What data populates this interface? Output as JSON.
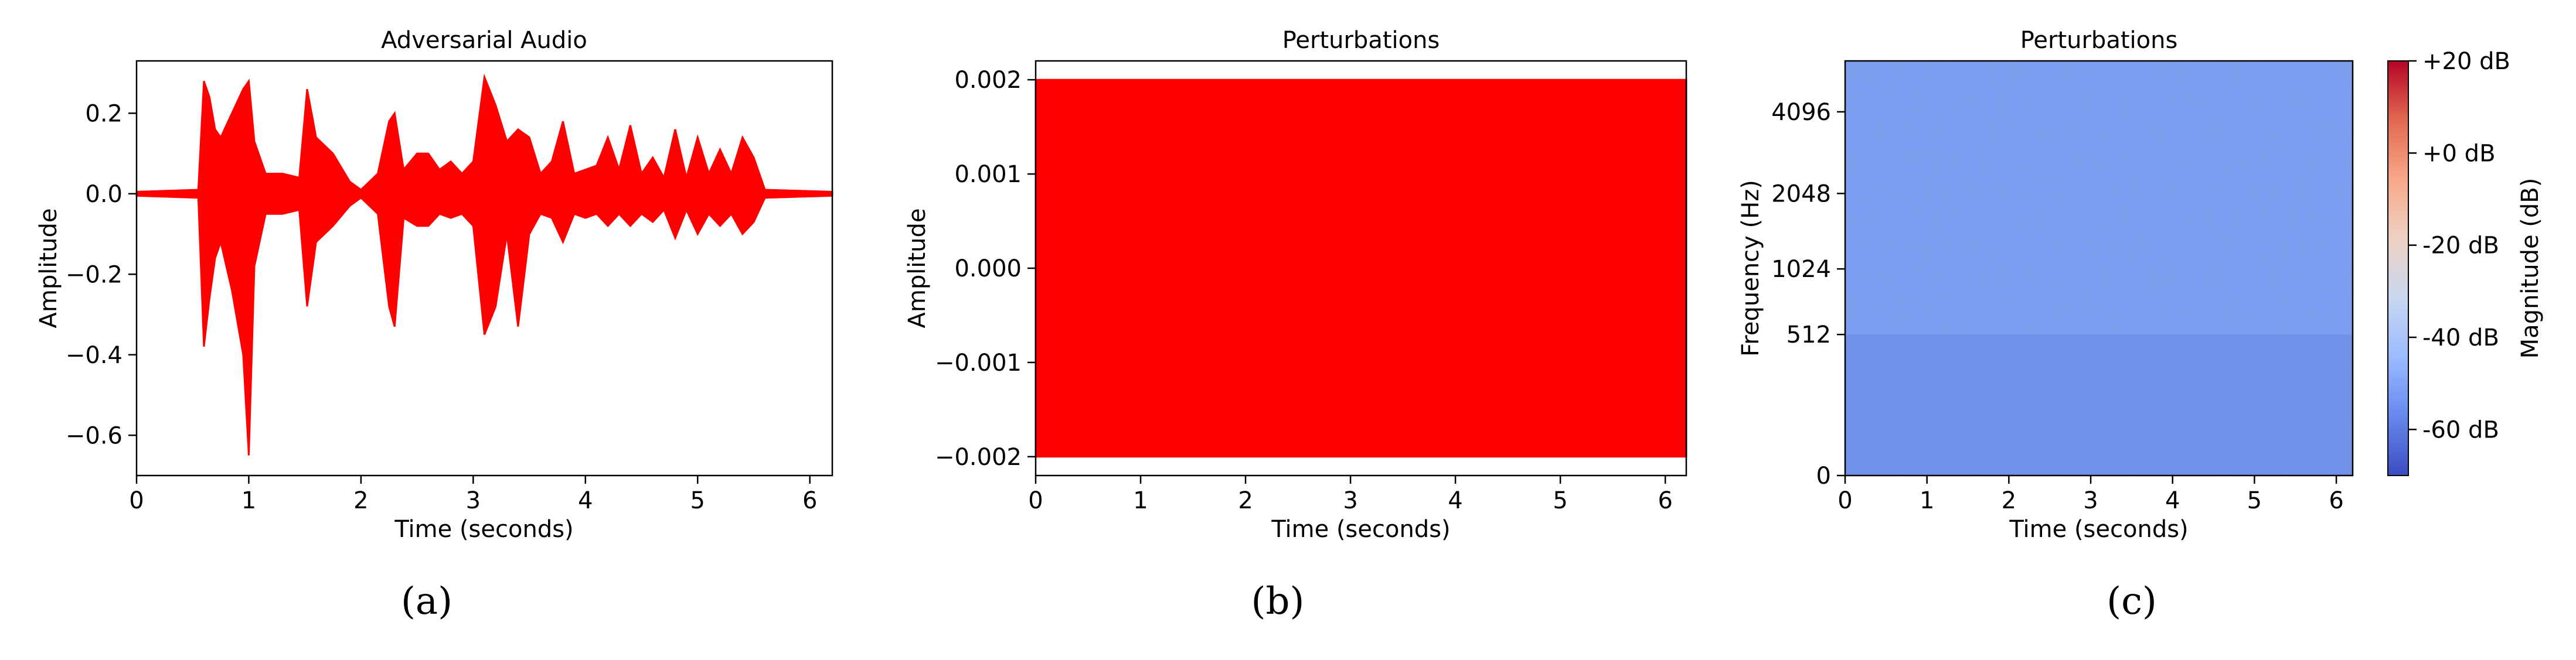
{
  "chart_data": [
    {
      "type": "line",
      "title": "Adversarial Audio",
      "xlabel": "Time (seconds)",
      "ylabel": "Amplitude",
      "xlim": [
        0,
        6.2
      ],
      "ylim": [
        -0.7,
        0.33
      ],
      "xticks": [
        0,
        1,
        2,
        3,
        4,
        5,
        6
      ],
      "xticklabels": [
        "0",
        "1",
        "2",
        "3",
        "4",
        "5",
        "6"
      ],
      "yticks": [
        0.2,
        0.0,
        -0.2,
        -0.4,
        -0.6
      ],
      "yticklabels": [
        "0.2",
        "0.0",
        "−0.2",
        "−0.4",
        "−0.6"
      ],
      "series": [
        {
          "color": "#ff0000",
          "envelope": {
            "x": [
              0,
              0.55,
              0.6,
              0.65,
              0.7,
              0.75,
              0.85,
              0.95,
              1.0,
              1.05,
              1.15,
              1.3,
              1.45,
              1.52,
              1.6,
              1.75,
              1.9,
              2.0,
              2.15,
              2.25,
              2.3,
              2.38,
              2.5,
              2.6,
              2.7,
              2.8,
              2.9,
              3.0,
              3.1,
              3.2,
              3.3,
              3.4,
              3.5,
              3.6,
              3.7,
              3.8,
              3.9,
              4.0,
              4.1,
              4.2,
              4.3,
              4.4,
              4.5,
              4.6,
              4.7,
              4.8,
              4.9,
              5.0,
              5.1,
              5.2,
              5.3,
              5.4,
              5.5,
              5.6,
              6.2
            ],
            "upper": [
              0.005,
              0.01,
              0.28,
              0.24,
              0.16,
              0.14,
              0.2,
              0.26,
              0.28,
              0.13,
              0.05,
              0.05,
              0.04,
              0.26,
              0.14,
              0.1,
              0.03,
              0.01,
              0.05,
              0.18,
              0.2,
              0.06,
              0.1,
              0.1,
              0.06,
              0.08,
              0.05,
              0.08,
              0.29,
              0.22,
              0.13,
              0.16,
              0.14,
              0.05,
              0.08,
              0.18,
              0.05,
              0.06,
              0.07,
              0.14,
              0.06,
              0.17,
              0.05,
              0.09,
              0.04,
              0.16,
              0.04,
              0.14,
              0.05,
              0.11,
              0.05,
              0.14,
              0.09,
              0.01,
              0.005
            ],
            "lower": [
              -0.005,
              -0.01,
              -0.38,
              -0.26,
              -0.16,
              -0.12,
              -0.24,
              -0.4,
              -0.65,
              -0.18,
              -0.05,
              -0.05,
              -0.04,
              -0.28,
              -0.12,
              -0.08,
              -0.03,
              -0.01,
              -0.05,
              -0.28,
              -0.33,
              -0.06,
              -0.08,
              -0.08,
              -0.05,
              -0.06,
              -0.05,
              -0.08,
              -0.35,
              -0.28,
              -0.1,
              -0.33,
              -0.1,
              -0.05,
              -0.06,
              -0.12,
              -0.05,
              -0.06,
              -0.05,
              -0.08,
              -0.05,
              -0.08,
              -0.05,
              -0.07,
              -0.04,
              -0.11,
              -0.04,
              -0.1,
              -0.05,
              -0.08,
              -0.05,
              -0.1,
              -0.07,
              -0.01,
              -0.005
            ]
          }
        }
      ],
      "grid": false
    },
    {
      "type": "line",
      "title": "Perturbations",
      "xlabel": "Time (seconds)",
      "ylabel": "Amplitude",
      "xlim": [
        0,
        6.2
      ],
      "ylim": [
        -0.0022,
        0.0022
      ],
      "xticks": [
        0,
        1,
        2,
        3,
        4,
        5,
        6
      ],
      "xticklabels": [
        "0",
        "1",
        "2",
        "3",
        "4",
        "5",
        "6"
      ],
      "yticks": [
        0.002,
        0.001,
        0.0,
        -0.001,
        -0.002
      ],
      "yticklabels": [
        "0.002",
        "0.001",
        "0.000",
        "−0.001",
        "−0.002"
      ],
      "series": [
        {
          "color": "#ff0000",
          "envelope": {
            "x": [
              0,
              6.2
            ],
            "upper": [
              0.002,
              0.002
            ],
            "lower": [
              -0.002,
              -0.002
            ]
          }
        }
      ],
      "grid": false
    },
    {
      "type": "heatmap",
      "title": "Perturbations",
      "xlabel": "Time (seconds)",
      "ylabel": "Frequency (Hz)",
      "xlim": [
        0,
        6.2
      ],
      "xticks": [
        0,
        1,
        2,
        3,
        4,
        5,
        6
      ],
      "xticklabels": [
        "0",
        "1",
        "2",
        "3",
        "4",
        "5",
        "6"
      ],
      "yscale": "symlog",
      "yticks": [
        0,
        512,
        1024,
        2048,
        4096
      ],
      "yticklabels": [
        "0",
        "512",
        "1024",
        "2048",
        "4096"
      ],
      "colormap": "coolwarm",
      "cell_color_base": "#7d9ef0",
      "colorbar": {
        "label": "Magnitude (dB)",
        "range": [
          -70,
          20
        ],
        "ticks": [
          20,
          0,
          -20,
          -40,
          -60
        ],
        "ticklabels": [
          "+20 dB",
          "+0 dB",
          "-20 dB",
          "-40 dB",
          "-60 dB"
        ],
        "colors": [
          "#3b4cc0",
          "#6788ee",
          "#9abbff",
          "#c9d7f0",
          "#edd1c2",
          "#f7a889",
          "#e26952",
          "#b40426"
        ]
      },
      "value_level_db": -47
    }
  ],
  "captions": [
    "(a)",
    "(b)",
    "(c)"
  ]
}
